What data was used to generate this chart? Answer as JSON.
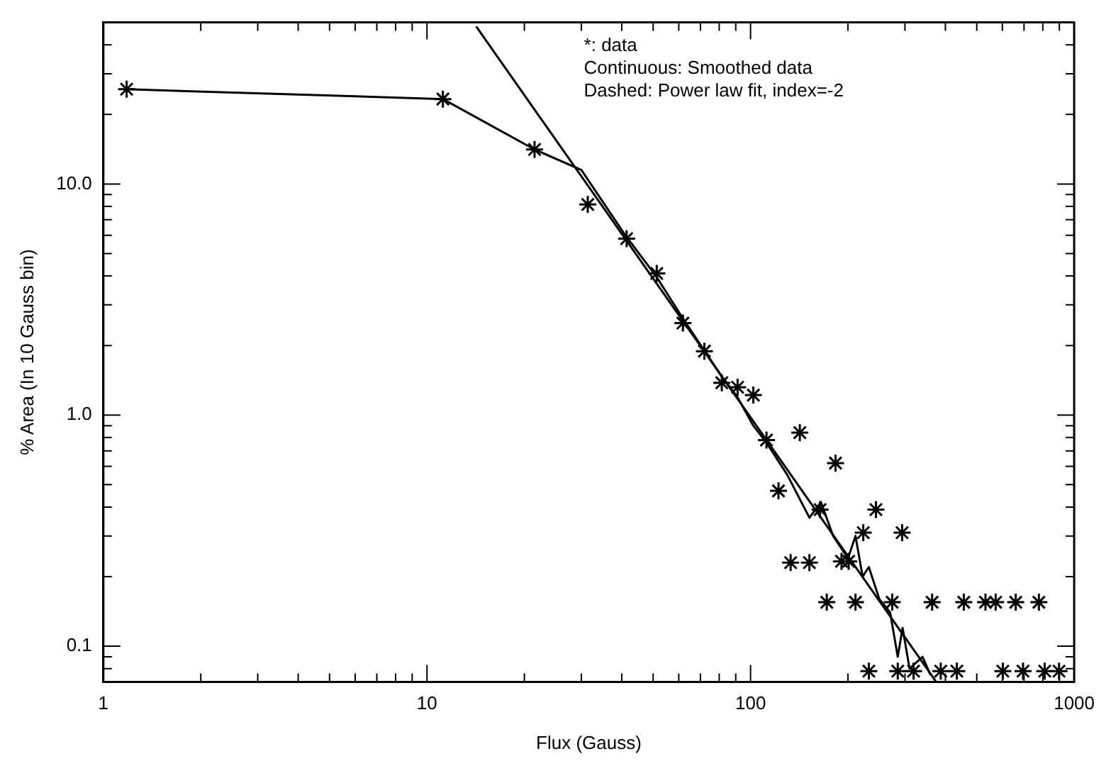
{
  "chart_data": {
    "type": "scatter",
    "xlabel": "Flux (Gauss)",
    "ylabel": "% Area (In 10 Gauss bin)",
    "log": "xy",
    "grid": false,
    "legend": false,
    "xlim": [
      1,
      1000
    ],
    "ylim": [
      0.07,
      50
    ],
    "xticks": [
      1,
      {
        "value": 2,
        "label": null
      },
      {
        "value": 3,
        "label": null
      },
      {
        "value": 4,
        "label": null
      },
      {
        "value": 5,
        "label": null
      },
      {
        "value": 6,
        "label": null
      },
      {
        "value": 7,
        "label": null
      },
      {
        "value": 8,
        "label": null
      },
      {
        "value": 9,
        "label": null
      },
      10,
      {
        "value": 20,
        "label": null
      },
      {
        "value": 30,
        "label": null
      },
      {
        "value": 40,
        "label": null
      },
      {
        "value": 50,
        "label": null
      },
      {
        "value": 60,
        "label": null
      },
      {
        "value": 70,
        "label": null
      },
      {
        "value": 80,
        "label": null
      },
      {
        "value": 90,
        "label": null
      },
      100,
      {
        "value": 200,
        "label": null
      },
      {
        "value": 300,
        "label": null
      },
      {
        "value": 400,
        "label": null
      },
      {
        "value": 500,
        "label": null
      },
      {
        "value": 600,
        "label": null
      },
      {
        "value": 700,
        "label": null
      },
      {
        "value": 800,
        "label": null
      },
      {
        "value": 900,
        "label": null
      },
      1000
    ],
    "yticks": [
      {
        "value": 0.08,
        "label": null
      },
      {
        "value": 0.09,
        "label": null
      },
      {
        "value": 0.1,
        "label": "0.1"
      },
      {
        "value": 0.2,
        "label": null
      },
      {
        "value": 0.3,
        "label": null
      },
      {
        "value": 0.4,
        "label": null
      },
      {
        "value": 0.5,
        "label": null
      },
      {
        "value": 0.6,
        "label": null
      },
      {
        "value": 0.7,
        "label": null
      },
      {
        "value": 0.8,
        "label": null
      },
      {
        "value": 0.9,
        "label": null
      },
      {
        "value": 1,
        "label": "1.0"
      },
      {
        "value": 2,
        "label": null
      },
      {
        "value": 3,
        "label": null
      },
      {
        "value": 4,
        "label": null
      },
      {
        "value": 5,
        "label": null
      },
      {
        "value": 6,
        "label": null
      },
      {
        "value": 7,
        "label": null
      },
      {
        "value": 8,
        "label": null
      },
      {
        "value": 9,
        "label": null
      },
      {
        "value": 10,
        "label": "10.0"
      },
      {
        "value": 20,
        "label": null
      },
      {
        "value": 30,
        "label": null
      },
      {
        "value": 40,
        "label": null
      }
    ],
    "annotations": [
      "*: data",
      "Continuous: Smoothed data",
      "Dashed: Power law fit, index=-2"
    ],
    "series": [
      {
        "marker": "cross",
        "color": "#000000",
        "x": [
          1.18,
          11.2,
          21.5,
          31.4,
          41.4,
          51.3,
          61.8,
          72,
          81.5,
          91.2,
          102,
          112,
          122,
          142,
          133,
          152,
          164,
          172,
          183,
          191,
          201,
          211,
          223,
          232,
          244,
          274,
          285,
          294,
          319,
          364,
          387,
          434,
          456,
          532,
          572,
          602,
          660,
          695,
          778,
          811,
          898
        ],
        "values": [
          25.7,
          23.3,
          14.1,
          8.15,
          5.8,
          4.1,
          2.5,
          1.89,
          1.38,
          1.32,
          1.22,
          0.78,
          0.47,
          0.84,
          0.23,
          0.23,
          0.39,
          0.155,
          0.62,
          0.233,
          0.233,
          0.155,
          0.31,
          0.078,
          0.39,
          0.155,
          0.078,
          0.31,
          0.078,
          0.155,
          0.078,
          0.078,
          0.155,
          0.155,
          0.155,
          0.078,
          0.155,
          0.078,
          0.155,
          0.078,
          0.078
        ]
      },
      {
        "type": "line",
        "marker": "none",
        "line_style": "solid",
        "color": "#000000",
        "x": [
          1.18,
          11.2,
          21.5,
          30,
          41,
          51,
          62,
          72,
          82,
          91,
          102,
          112,
          130,
          152,
          165,
          180,
          200,
          211,
          222,
          232,
          250,
          270,
          285,
          295,
          310,
          340,
          360
        ],
        "values": [
          25.7,
          23.3,
          14.1,
          11.5,
          6.0,
          4.0,
          2.6,
          1.9,
          1.45,
          1.2,
          0.9,
          0.76,
          0.55,
          0.36,
          0.42,
          0.3,
          0.24,
          0.3,
          0.2,
          0.22,
          0.16,
          0.14,
          0.09,
          0.12,
          0.08,
          0.09,
          0.075
        ]
      },
      {
        "type": "line",
        "marker": "none",
        "line_style": "solid",
        "color": "#000000",
        "x": [
          14.2,
          375
        ],
        "values": [
          48,
          0.07
        ]
      }
    ]
  }
}
